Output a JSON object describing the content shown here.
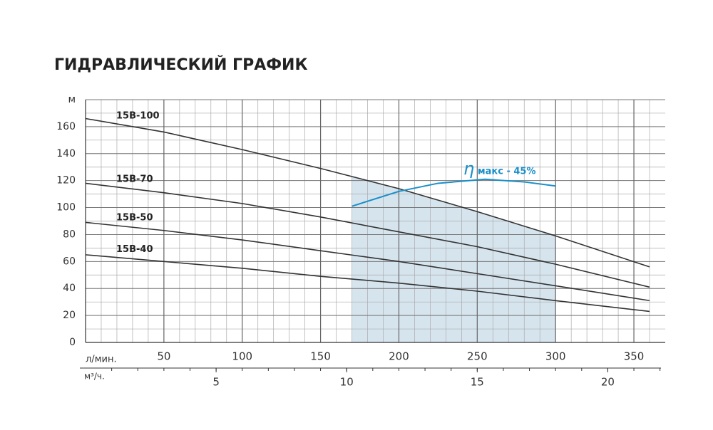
{
  "chart_data": {
    "type": "line",
    "title": "ГИДРАВЛИЧЕСКИЙ ГРАФИК",
    "x_label": "л/мин.",
    "x2_label": "м³/ч.",
    "x": [
      0,
      50,
      100,
      150,
      200,
      250,
      300,
      360
    ],
    "series": [
      {
        "name": "15B-100",
        "color": "#333333",
        "values": [
          166,
          156,
          143,
          129,
          114,
          97,
          79,
          56
        ]
      },
      {
        "name": "15B-70",
        "color": "#333333",
        "values": [
          118,
          111,
          103,
          93,
          82,
          71,
          58,
          41
        ]
      },
      {
        "name": "15B-50",
        "color": "#333333",
        "values": [
          89,
          83,
          76,
          68,
          60,
          51,
          42,
          31
        ]
      },
      {
        "name": "15B-40",
        "color": "#333333",
        "values": [
          65,
          60,
          55,
          49,
          44,
          38,
          31,
          23
        ]
      }
    ],
    "efficiency_curve": {
      "symbol": "η",
      "label": "макс - 45%",
      "color": "#1a8fc9",
      "x": [
        170,
        200,
        225,
        255,
        280,
        300
      ],
      "values": [
        101,
        112,
        118,
        121,
        119,
        116
      ]
    },
    "highlight_range": [
      170,
      300
    ],
    "highlight_color": "#d6e4ee",
    "xlim": [
      0,
      370
    ],
    "xticks": [
      50,
      100,
      150,
      200,
      250,
      300,
      350
    ],
    "x2lim": [
      0,
      22.2
    ],
    "x2ticks": [
      5,
      10,
      15,
      20
    ],
    "ylim": [
      0,
      180
    ],
    "yticks": [
      0,
      20,
      40,
      60,
      80,
      100,
      120,
      140,
      160,
      {
        "value": 180,
        "label": "м"
      }
    ],
    "grid": true
  }
}
